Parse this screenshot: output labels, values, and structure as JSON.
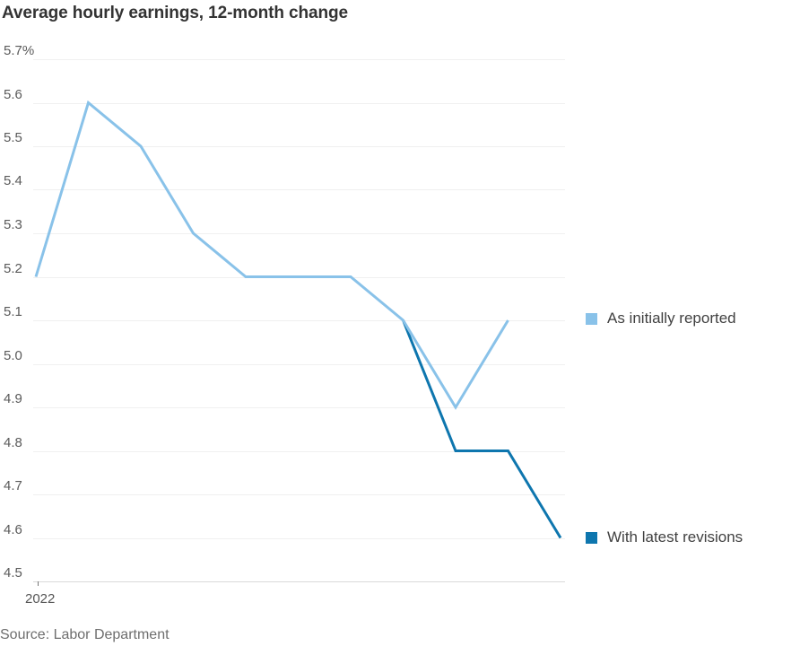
{
  "title": "Average hourly earnings, 12-month change",
  "source": "Source: Labor Department",
  "x_axis": {
    "label": "2022"
  },
  "legend": [
    {
      "label": "As initially reported",
      "color": "#89C2E9"
    },
    {
      "label": "With latest revisions",
      "color": "#0E76AE"
    }
  ],
  "colors": {
    "initial_line": "#89C2E9",
    "revised_line": "#0E76AE",
    "gridline": "#f0f0f0",
    "baseline": "#d9d9d9"
  },
  "chart_data": {
    "type": "line",
    "title": "Average hourly earnings, 12-month change",
    "xlabel": "2022",
    "ylabel": "percent, 12-month change",
    "ylim": [
      4.5,
      5.7
    ],
    "grid": "horizontal",
    "legend_position": "right, each entry aligned with its line endpoint",
    "x_unit": "months of 2022, only first month tick labeled",
    "y_ticks": [
      {
        "value": 5.7,
        "label": "5.7%"
      },
      {
        "value": 5.6,
        "label": "5.6"
      },
      {
        "value": 5.5,
        "label": "5.5"
      },
      {
        "value": 5.4,
        "label": "5.4"
      },
      {
        "value": 5.3,
        "label": "5.3"
      },
      {
        "value": 5.2,
        "label": "5.2"
      },
      {
        "value": 5.1,
        "label": "5.1"
      },
      {
        "value": 5.0,
        "label": "5.0"
      },
      {
        "value": 4.9,
        "label": "4.9"
      },
      {
        "value": 4.8,
        "label": "4.8"
      },
      {
        "value": 4.7,
        "label": "4.7"
      },
      {
        "value": 4.6,
        "label": "4.6"
      },
      {
        "value": 4.5,
        "label": "4.5"
      }
    ],
    "series": [
      {
        "name": "As initially reported",
        "color": "#89C2E9",
        "x": [
          0,
          1,
          2,
          3,
          4,
          5,
          6,
          7,
          8,
          9
        ],
        "values": [
          5.2,
          5.6,
          5.5,
          5.3,
          5.2,
          5.2,
          5.2,
          5.1,
          4.9,
          5.1
        ]
      },
      {
        "name": "With latest revisions",
        "color": "#0E76AE",
        "x": [
          7,
          8,
          9,
          10
        ],
        "values": [
          5.1,
          4.8,
          4.8,
          4.6
        ]
      }
    ]
  }
}
